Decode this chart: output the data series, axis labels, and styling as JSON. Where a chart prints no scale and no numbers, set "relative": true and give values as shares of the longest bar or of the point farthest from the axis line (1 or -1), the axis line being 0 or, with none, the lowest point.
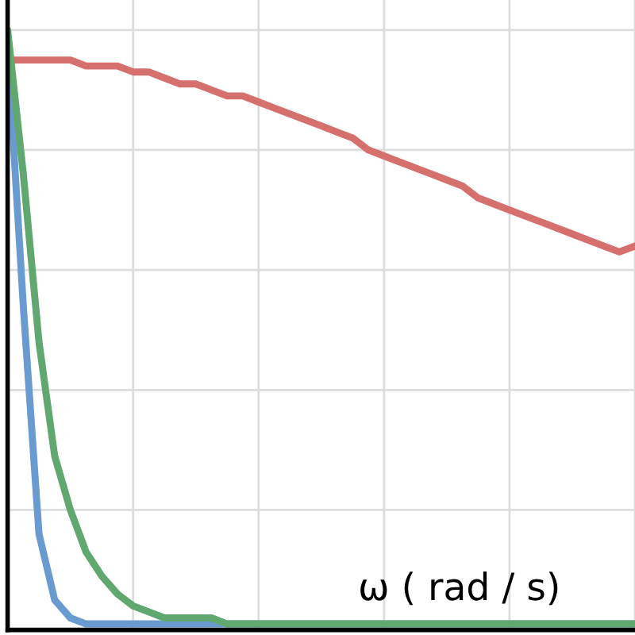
{
  "chart_data": {
    "type": "line",
    "relative": true,
    "xlabel": "ω ( rad / s)",
    "grid": true,
    "categories": [
      null,
      null,
      null,
      null,
      null,
      null,
      null,
      null,
      null,
      null,
      null,
      null,
      null,
      null,
      null,
      null,
      null,
      null,
      null,
      null,
      null,
      null,
      null,
      null,
      null,
      null,
      null,
      null,
      null,
      null,
      null,
      null,
      null,
      null,
      null,
      null,
      null,
      null,
      null,
      null,
      null
    ],
    "series": [
      {
        "color": "#d6706e",
        "values": [
          0.95,
          0.95,
          0.95,
          0.95,
          0.95,
          0.94,
          0.94,
          0.94,
          0.93,
          0.93,
          0.92,
          0.91,
          0.91,
          0.9,
          0.89,
          0.89,
          0.88,
          0.87,
          0.86,
          0.85,
          0.84,
          0.83,
          0.82,
          0.8,
          0.79,
          0.78,
          0.77,
          0.76,
          0.75,
          0.74,
          0.72,
          0.71,
          0.7,
          0.69,
          0.68,
          0.67,
          0.66,
          0.65,
          0.64,
          0.63,
          0.64
        ]
      },
      {
        "color": "#6a9bd0",
        "values": [
          0.97,
          0.54,
          0.16,
          0.05,
          0.02,
          0.01,
          0.01,
          0.01,
          0.01,
          0.01,
          0.01,
          0.01,
          0.01,
          0.01,
          0.01,
          0.01,
          0.01,
          0.01,
          0.01,
          0.01,
          0.01,
          0.01,
          0.01,
          0.01,
          0.01,
          0.01,
          0.01,
          0.01,
          0.01,
          0.01,
          0.01,
          0.01,
          0.01,
          0.01,
          0.01,
          0.01,
          0.01,
          0.01,
          0.01,
          0.01,
          0.01
        ]
      },
      {
        "color": "#60a870",
        "values": [
          1.0,
          0.76,
          0.48,
          0.29,
          0.2,
          0.13,
          0.09,
          0.06,
          0.04,
          0.03,
          0.02,
          0.02,
          0.02,
          0.02,
          0.01,
          0.01,
          0.01,
          0.01,
          0.01,
          0.01,
          0.01,
          0.01,
          0.01,
          0.01,
          0.01,
          0.01,
          0.01,
          0.01,
          0.01,
          0.01,
          0.01,
          0.01,
          0.01,
          0.01,
          0.01,
          0.01,
          0.01,
          0.01,
          0.01,
          0.01,
          0.01
        ]
      }
    ]
  }
}
